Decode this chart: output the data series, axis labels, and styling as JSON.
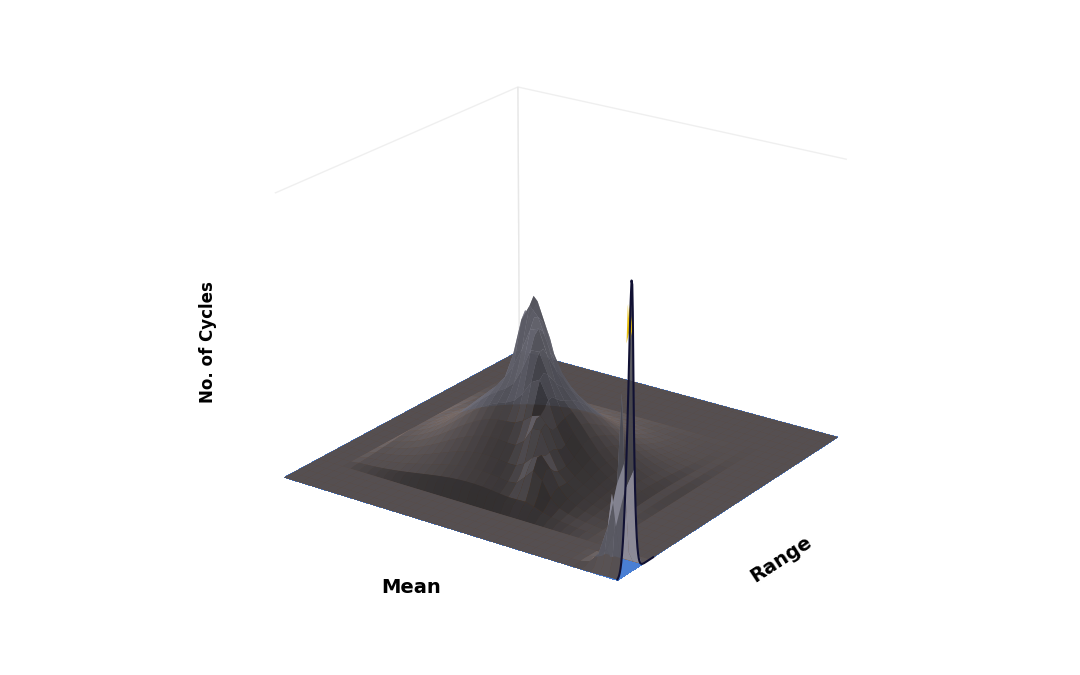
{
  "xlabel": "Range",
  "ylabel": "Mean",
  "zlabel": "No. of Cycles",
  "background_color": "#ffffff",
  "colors": {
    "blue_floor": "#4a7fd4",
    "blue_layer": "#4a7fd4",
    "blue_light": "#6aaae8",
    "orange": "#e8821a",
    "gray": "#9898a8",
    "yellow": "#e8c010",
    "green": "#44aa22",
    "dark": "#111133"
  },
  "view_elev": 22,
  "view_azim": 215,
  "n_range": 60,
  "n_mean": 40
}
